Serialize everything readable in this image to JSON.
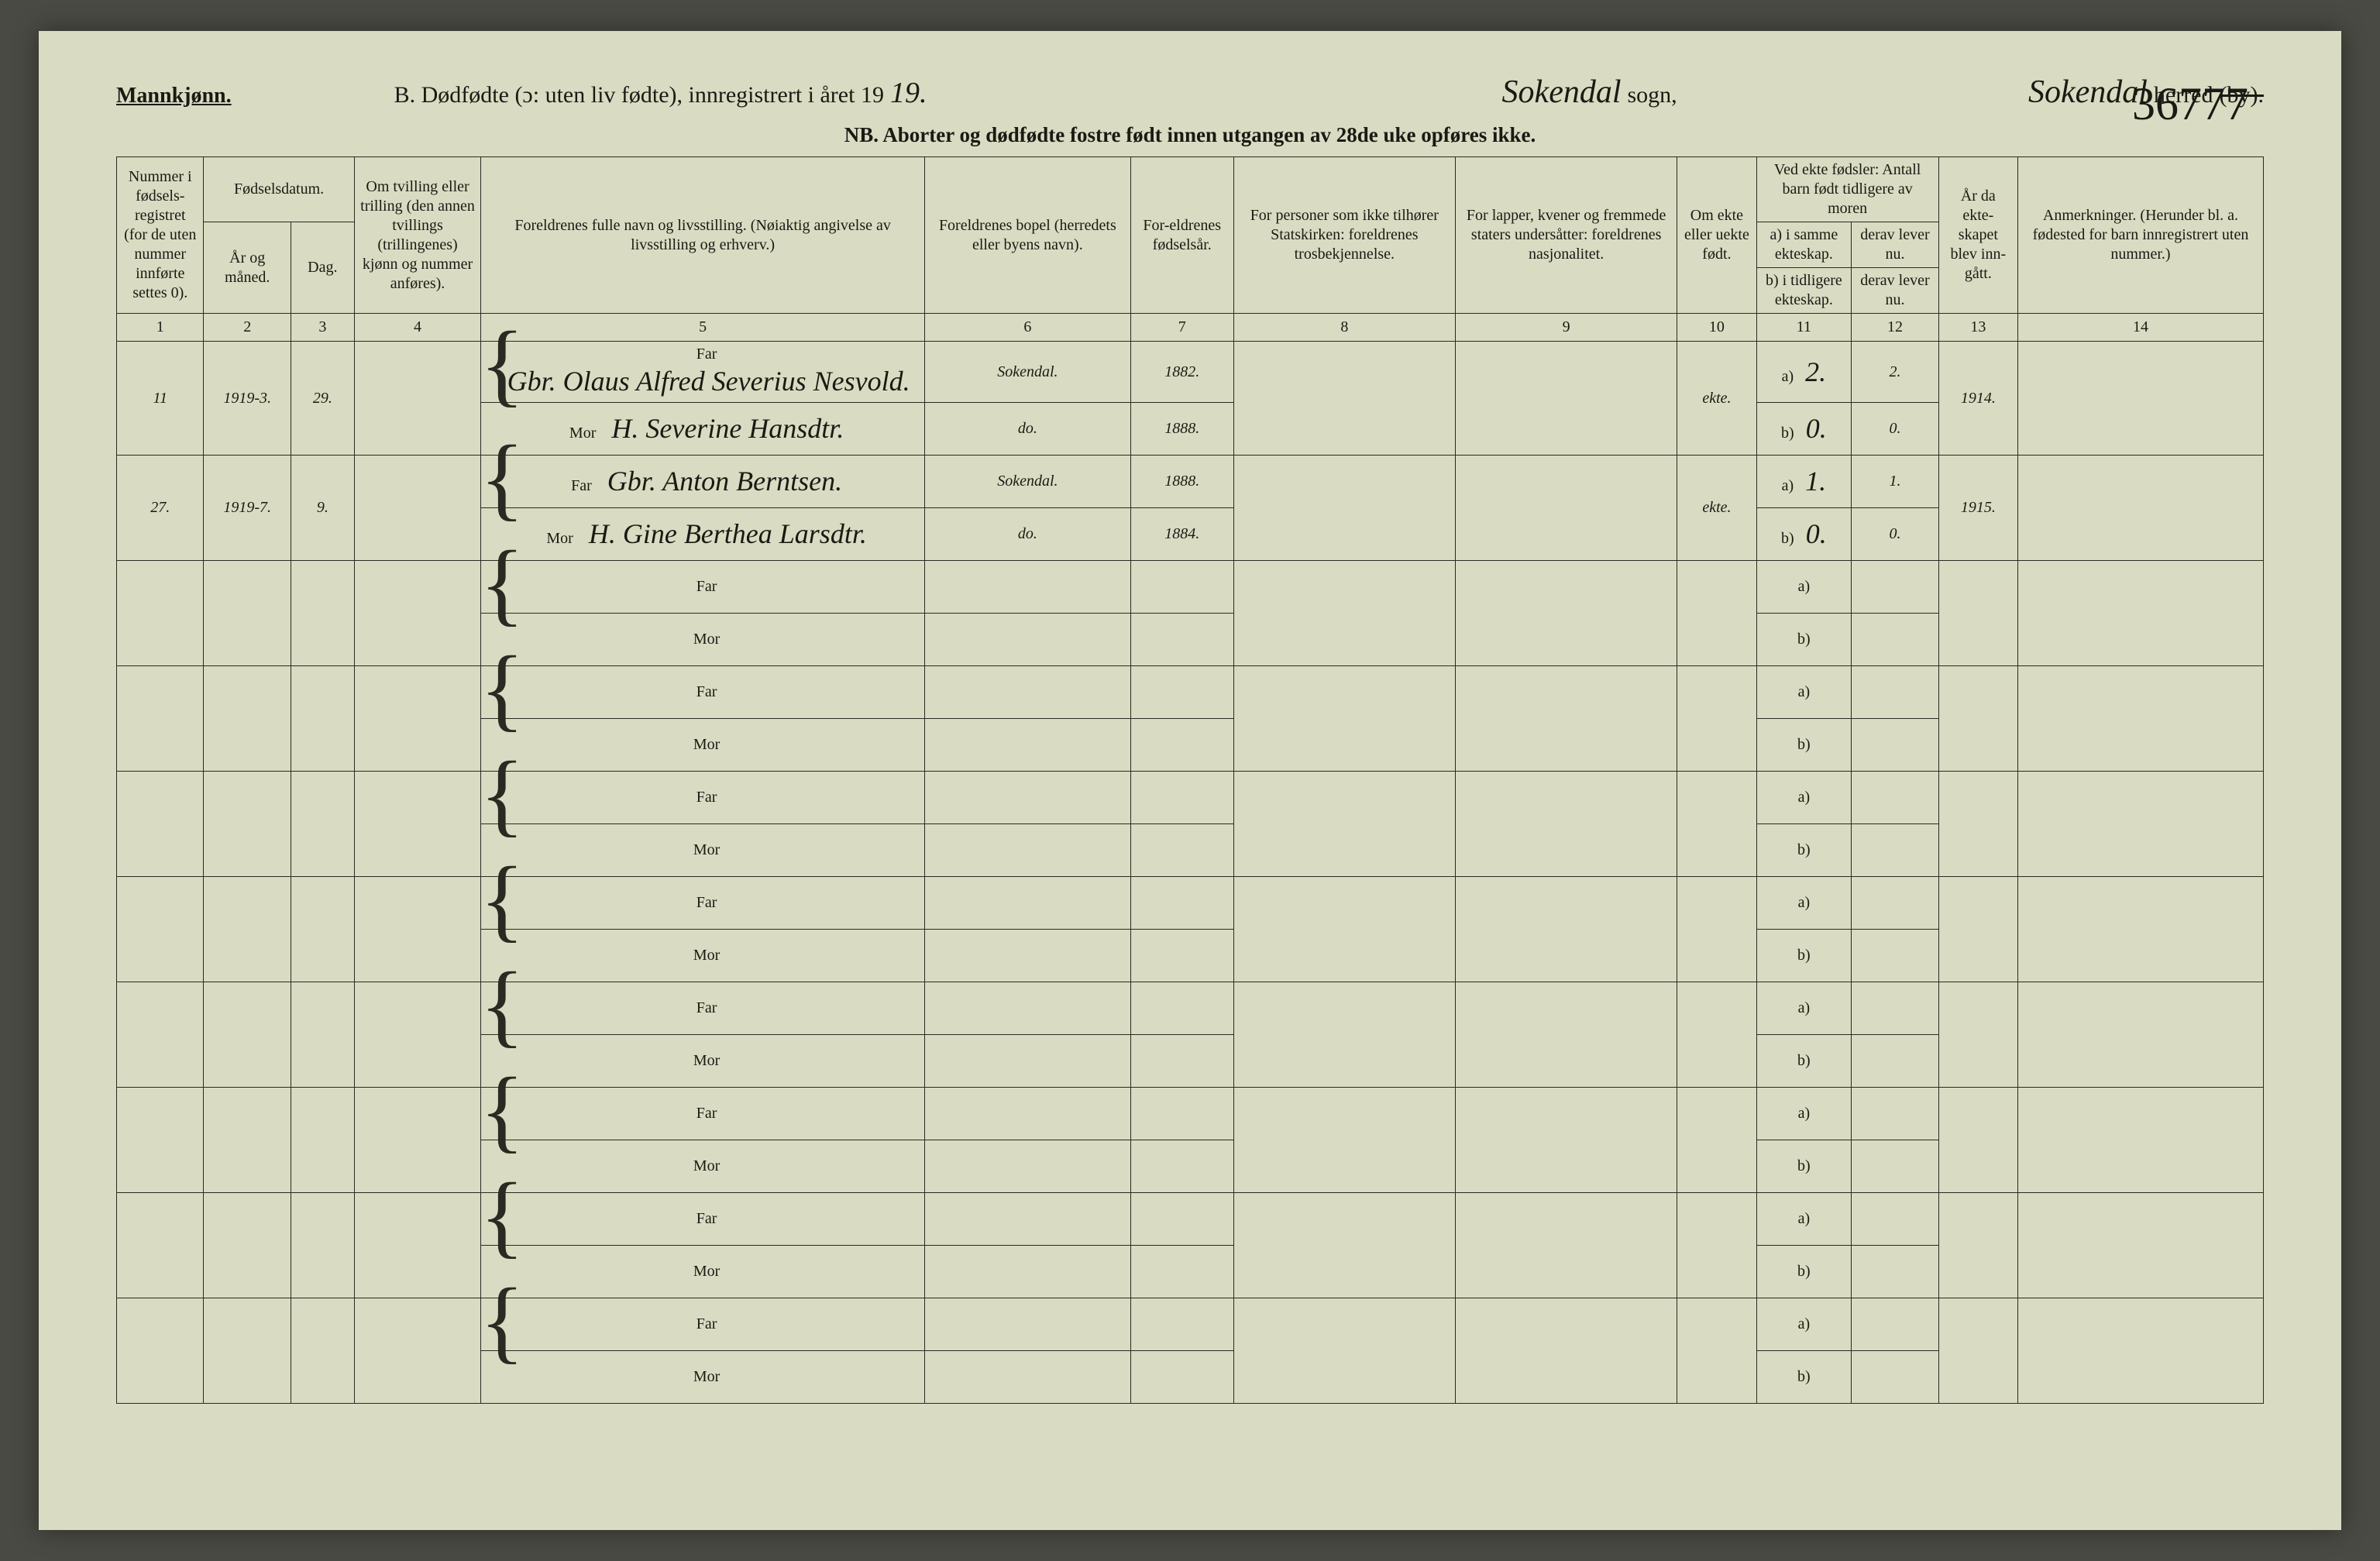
{
  "page": {
    "background": "#d9dcc2",
    "ink": "#1a1a14",
    "border": "#2a2a22"
  },
  "header": {
    "mannkjonn": "Mannkjønn.",
    "title_prefix": "B. Dødfødte (ɔ: uten liv fødte), innregistrert i året 19",
    "year_hand": "19.",
    "sogn_hand": "Sokendal",
    "sogn_label": "sogn,",
    "herred_hand": "Sokendal",
    "herred_label": "herred",
    "by_struck": "(by).",
    "page_hand_number": "36777",
    "nb": "NB. Aborter og dødfødte fostre født innen utgangen av 28de uke opføres ikke."
  },
  "columns": {
    "c1": "Nummer i fødsels-registret (for de uten nummer innførte settes 0).",
    "c2_top": "Fødselsdatum.",
    "c2a": "År og måned.",
    "c2b": "Dag.",
    "c4": "Om tvilling eller trilling (den annen tvillings (trillingenes) kjønn og nummer anføres).",
    "c5": "Foreldrenes fulle navn og livsstilling. (Nøiaktig angivelse av livsstilling og erhverv.)",
    "c6": "Foreldrenes bopel (herredets eller byens navn).",
    "c7": "For-eldrenes fødselsår.",
    "c8": "For personer som ikke tilhører Statskirken: foreldrenes trosbekjennelse.",
    "c9": "For lapper, kvener og fremmede staters undersåtter: foreldrenes nasjonalitet.",
    "c10": "Om ekte eller uekte født.",
    "c11_top": "Ved ekte fødsler: Antall barn født tidligere av moren",
    "c11a": "a) i samme ekteskap.",
    "c11b": "b) i tidligere ekteskap.",
    "c12a": "derav lever nu.",
    "c12b": "derav lever nu.",
    "c13": "År da ekte-skapet blev inn-gått.",
    "c14": "Anmerkninger. (Herunder bl. a. fødested for barn innregistrert uten nummer.)"
  },
  "colnums": [
    "1",
    "2",
    "3",
    "4",
    "5",
    "6",
    "7",
    "8",
    "9",
    "10",
    "11",
    "12",
    "13",
    "14"
  ],
  "labels": {
    "far": "Far",
    "mor": "Mor",
    "a": "a)",
    "b": "b)"
  },
  "entries": [
    {
      "num": "11",
      "year_month": "1919-3.",
      "day": "29.",
      "far_name": "Gbr. Olaus Alfred Severius Nesvold.",
      "far_bopel": "Sokendal.",
      "far_birth": "1882.",
      "mor_name": "H. Severine Hansdtr.",
      "mor_bopel": "do.",
      "mor_birth": "1888.",
      "ekte": "ekte.",
      "a_same": "2.",
      "a_lever": "2.",
      "b_prev": "0.",
      "b_lever": "0.",
      "marriage": "1914."
    },
    {
      "num": "27.",
      "year_month": "1919-7.",
      "day": "9.",
      "far_name": "Gbr. Anton Berntsen.",
      "far_bopel": "Sokendal.",
      "far_birth": "1888.",
      "mor_name": "H. Gine Berthea Larsdtr.",
      "mor_bopel": "do.",
      "mor_birth": "1884.",
      "ekte": "ekte.",
      "a_same": "1.",
      "a_lever": "1.",
      "b_prev": "0.",
      "b_lever": "0.",
      "marriage": "1915."
    }
  ],
  "empty_row_count": 8
}
